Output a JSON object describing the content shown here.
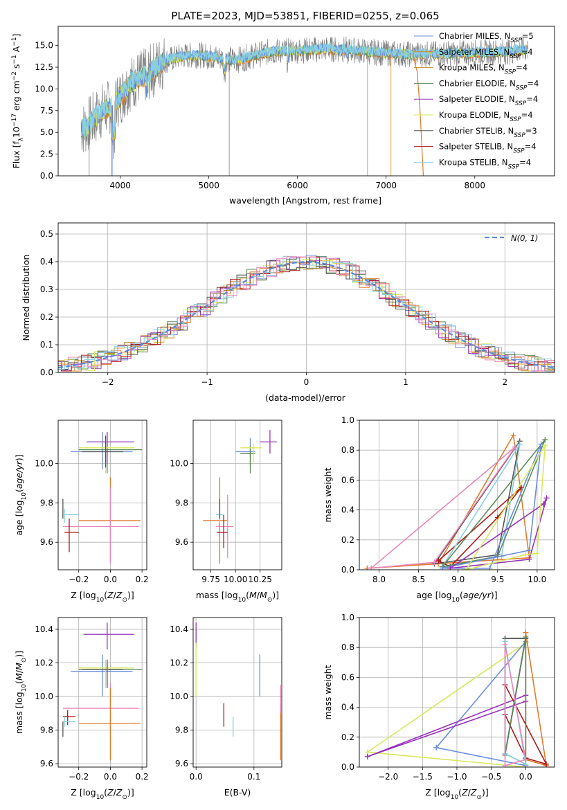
{
  "title": "PLATE=2023, MJD=53851, FIBERID=0255, z=0.065",
  "colors": {
    "Chabrier MILES": "#6b8fde",
    "Salpeter MILES": "#e07b2a",
    "Kroupa MILES": "#ca8a26",
    "Chabrier ELODIE": "#5b8a5b",
    "Salpeter ELODIE": "#9933bb",
    "Kroupa ELODIE": "#d8e85a",
    "Chabrier STELIB": "#555555",
    "Salpeter STELIB": "#b01818",
    "Kroupa STELIB": "#88d0e0",
    "Pink": "#e887b8",
    "Data": "#808080"
  },
  "chart_data": [
    {
      "type": "line",
      "panel": "spectrum",
      "xlabel": "wavelength [Angstrom, rest frame]",
      "ylabel_pre": "Flux [f",
      "ylabel_sub": "λ",
      "ylabel_mid": "10",
      "ylabel_sup": "−17",
      "ylabel_post": " erg cm",
      "ylabel_sup2": "−2",
      "ylabel_post2": " s",
      "ylabel_sup3": "−1",
      "ylabel_post3": " A",
      "ylabel_sup4": "−1",
      "ylabel_end": "]",
      "xlim": [
        3300,
        8900
      ],
      "ylim": [
        0,
        17.2
      ],
      "xticks": [
        "4000",
        "5000",
        "6000",
        "7000",
        "8000"
      ],
      "yticks": [
        "0.0",
        "2.5",
        "5.0",
        "7.5",
        "10.0",
        "12.5",
        "15.0"
      ],
      "legend": [
        {
          "name": "Chabrier MILES",
          "n": "5"
        },
        {
          "name": "Salpeter MILES",
          "n": "4"
        },
        {
          "name": "Kroupa MILES",
          "n": "4"
        },
        {
          "name": "Chabrier ELODIE",
          "n": "4"
        },
        {
          "name": "Salpeter ELODIE",
          "n": "4"
        },
        {
          "name": "Kroupa ELODIE",
          "n": "4"
        },
        {
          "name": "Chabrier STELIB",
          "n": "3"
        },
        {
          "name": "Salpeter STELIB",
          "n": "4"
        },
        {
          "name": "Kroupa STELIB",
          "n": "4"
        }
      ],
      "nssp_label": "N",
      "nssp_sub": "SSP",
      "continuum": {
        "x": [
          3600,
          3700,
          3800,
          3900,
          4000,
          4100,
          4200,
          4300,
          4400,
          4500,
          4700,
          4900,
          5100,
          5300,
          5500,
          5700,
          6000,
          6300,
          6600,
          6900,
          7200,
          7500,
          7800,
          8100,
          8400,
          8600
        ],
        "y": [
          5.5,
          6.5,
          7.5,
          8.0,
          9.0,
          10.5,
          11.2,
          11.5,
          12.5,
          13.2,
          13.8,
          13.9,
          13.6,
          13.3,
          13.8,
          14.3,
          14.4,
          14.6,
          14.5,
          14.2,
          14.0,
          14.0,
          14.1,
          14.2,
          14.3,
          14.6
        ]
      }
    },
    {
      "type": "histogram",
      "panel": "residuals",
      "xlabel": "(data-model)/error",
      "ylabel": "Normed distribution",
      "xlim": [
        -2.5,
        2.5
      ],
      "ylim": [
        0,
        0.54
      ],
      "xticks": [
        "−2",
        "−1",
        "0",
        "1",
        "2"
      ],
      "yticks": [
        "0.0",
        "0.1",
        "0.2",
        "0.3",
        "0.4",
        "0.5"
      ],
      "legend_label": "N(0, 1)"
    },
    {
      "type": "scatter",
      "panel": "age_vs_Z",
      "xlabel_pre": "Z [log",
      "xlabel_sub": "10",
      "xlabel_post": "(Z/Z",
      "xlabel_sun": "⊙",
      "xlabel_end": ")]",
      "ylabel_pre": "age  [log",
      "ylabel_sub": "10",
      "ylabel_post": "(age/yr)]",
      "xlim": [
        -0.33,
        0.23
      ],
      "ylim": [
        9.46,
        10.22
      ],
      "xticks": [
        "−0.2",
        "0.0",
        "0.2"
      ],
      "yticks": [
        "9.6",
        "9.8",
        "10.0"
      ],
      "points": [
        {
          "c": "Chabrier MILES",
          "x": -0.05,
          "y": 10.06,
          "ex": [
            -0.25,
            0.14
          ],
          "ey": [
            9.97,
            10.16
          ]
        },
        {
          "c": "Chabrier ELODIE",
          "x": -0.02,
          "y": 10.07,
          "ex": [
            -0.2,
            0.2
          ],
          "ey": [
            9.95,
            10.15
          ]
        },
        {
          "c": "Salpeter ELODIE",
          "x": -0.02,
          "y": 10.11,
          "ex": [
            -0.15,
            0.15
          ],
          "ey": [
            10.0,
            10.16
          ]
        },
        {
          "c": "Kroupa ELODIE",
          "x": -0.03,
          "y": 10.08,
          "ex": [
            -0.2,
            0.15
          ],
          "ey": [
            9.95,
            10.15
          ]
        },
        {
          "c": "Chabrier STELIB",
          "x": -0.03,
          "y": 10.06,
          "ex": [
            -0.18,
            0.08
          ],
          "ey": [
            9.98,
            10.14
          ]
        },
        {
          "c": "Salpeter MILES",
          "x": 0.0,
          "y": 9.71,
          "ex": [
            -0.2,
            0.19
          ],
          "ey": [
            9.5,
            9.93
          ]
        },
        {
          "c": "Pink",
          "x": 0.0,
          "y": 9.68,
          "ex": [
            -0.3,
            0.18
          ],
          "ey": [
            9.49,
            9.88
          ]
        },
        {
          "c": "Kroupa STELIB",
          "x": -0.29,
          "y": 9.74,
          "ex": [
            -0.29,
            -0.2
          ],
          "ey": [
            9.7,
            9.77
          ]
        },
        {
          "c": "Salpeter STELIB",
          "x": -0.26,
          "y": 9.65,
          "ex": [
            -0.29,
            -0.2
          ],
          "ey": [
            9.55,
            9.72
          ]
        },
        {
          "c": "Chabrier STELIB",
          "x": -0.3,
          "y": 9.78,
          "ex": [
            -0.3,
            -0.3
          ],
          "ey": [
            9.72,
            9.82
          ]
        }
      ]
    },
    {
      "type": "scatter",
      "panel": "age_vs_mass",
      "xlabel_pre": "mass [log",
      "xlabel_sub": "10",
      "xlabel_post": "(M/M",
      "xlabel_sun": "⊙",
      "xlabel_end": ")]",
      "xlim": [
        9.57,
        10.47
      ],
      "ylim": [
        9.46,
        10.22
      ],
      "xticks": [
        "9.75",
        "10.00",
        "10.25"
      ],
      "yticks": [
        "9.6",
        "9.8",
        "10.0"
      ],
      "points": [
        {
          "c": "Chabrier MILES",
          "x": 10.15,
          "y": 10.06,
          "ex": [
            10.0,
            10.2
          ],
          "ey": [
            9.99,
            10.13
          ]
        },
        {
          "c": "Chabrier ELODIE",
          "x": 10.15,
          "y": 10.05,
          "ex": [
            10.05,
            10.2
          ],
          "ey": [
            9.95,
            10.09
          ]
        },
        {
          "c": "Kroupa ELODIE",
          "x": 10.18,
          "y": 10.08,
          "ex": [
            10.05,
            10.27
          ],
          "ey": [
            10.0,
            10.1
          ]
        },
        {
          "c": "Salpeter ELODIE",
          "x": 10.35,
          "y": 10.11,
          "ex": [
            10.25,
            10.42
          ],
          "ey": [
            10.05,
            10.17
          ]
        },
        {
          "c": "Salpeter MILES",
          "x": 9.84,
          "y": 9.71,
          "ex": [
            9.67,
            9.92
          ],
          "ey": [
            9.49,
            9.93
          ]
        },
        {
          "c": "Pink",
          "x": 9.92,
          "y": 9.68,
          "ex": [
            9.8,
            9.98
          ],
          "ey": [
            9.52,
            9.84
          ]
        },
        {
          "c": "Salpeter STELIB",
          "x": 9.88,
          "y": 9.65,
          "ex": [
            9.81,
            9.92
          ],
          "ey": [
            9.57,
            9.74
          ]
        },
        {
          "c": "Kroupa STELIB",
          "x": 9.84,
          "y": 9.74,
          "ex": [
            9.8,
            9.87
          ],
          "ey": [
            9.7,
            9.77
          ]
        },
        {
          "c": "Chabrier STELIB",
          "x": 9.84,
          "y": 9.77,
          "ex": [
            9.84,
            9.84
          ],
          "ey": [
            9.72,
            9.82
          ]
        }
      ]
    },
    {
      "type": "line",
      "panel": "weight_vs_age",
      "xlabel_pre": "age  [log",
      "xlabel_sub": "10",
      "xlabel_post": "(age/yr)]",
      "ylabel": "mass weight",
      "xlim": [
        7.75,
        10.22
      ],
      "ylim": [
        0,
        1.0
      ],
      "xticks": [
        "8.0",
        "8.5",
        "9.0",
        "9.5",
        "10.0"
      ],
      "yticks": [
        "0.0",
        "0.2",
        "0.4",
        "0.6",
        "0.8",
        "1.0"
      ],
      "series": [
        {
          "c": "Salpeter MILES",
          "x": [
            7.85,
            8.75,
            9.7,
            9.9,
            7.85
          ],
          "y": [
            0.01,
            0.04,
            0.9,
            0.08,
            0.01
          ]
        },
        {
          "c": "Chabrier STELIB",
          "x": [
            8.7,
            9.5,
            9.78,
            8.7
          ],
          "y": [
            0.04,
            0.1,
            0.86,
            0.04
          ]
        },
        {
          "c": "Salpeter STELIB",
          "x": [
            8.75,
            8.9,
            9.5,
            9.8,
            8.75
          ],
          "y": [
            0.06,
            0.02,
            0.35,
            0.55,
            0.06
          ]
        },
        {
          "c": "Pink",
          "x": [
            7.9,
            8.7,
            9.72,
            9.72,
            7.9
          ],
          "y": [
            0.01,
            0.05,
            0.82,
            0.82,
            0.01
          ]
        },
        {
          "c": "Kroupa STELIB",
          "x": [
            8.8,
            9.55,
            9.78,
            8.8
          ],
          "y": [
            0.02,
            0.09,
            0.84,
            0.02
          ]
        },
        {
          "c": "Chabrier ELODIE",
          "x": [
            8.8,
            9.5,
            10.1,
            8.8
          ],
          "y": [
            0.02,
            0.09,
            0.87,
            0.02
          ]
        },
        {
          "c": "Chabrier MILES",
          "x": [
            8.8,
            9.9,
            10.05,
            9.4,
            8.8
          ],
          "y": [
            0.01,
            0.13,
            0.84,
            0.01,
            0.01
          ]
        },
        {
          "c": "Salpeter ELODIE",
          "x": [
            8.9,
            9.9,
            10.12,
            10.08,
            8.9
          ],
          "y": [
            0.01,
            0.07,
            0.48,
            0.44,
            0.01
          ]
        },
        {
          "c": "Kroupa ELODIE",
          "x": [
            9.1,
            9.85,
            10.0,
            10.1,
            9.1
          ],
          "y": [
            0.0,
            0.1,
            0.11,
            0.83,
            0.0
          ]
        }
      ]
    },
    {
      "type": "scatter",
      "panel": "mass_vs_Z",
      "xlabel_pre": "Z [log",
      "xlabel_sub": "10",
      "xlabel_post": "(Z/Z",
      "xlabel_sun": "⊙",
      "xlabel_end": ")]",
      "ylabel_pre": "mass [log",
      "ylabel_sub": "10",
      "ylabel_post": "(M/M",
      "ylabel_sun": "⊙",
      "ylabel_end": ")]",
      "xlim": [
        -0.33,
        0.23
      ],
      "ylim": [
        9.58,
        10.47
      ],
      "xticks": [
        "−0.2",
        "0.0",
        "0.2"
      ],
      "yticks": [
        "9.6",
        "9.8",
        "10.0",
        "10.2",
        "10.4"
      ],
      "points": [
        {
          "c": "Salpeter ELODIE",
          "x": -0.02,
          "y": 10.37,
          "ex": [
            -0.17,
            0.15
          ],
          "ey": [
            10.28,
            10.44
          ]
        },
        {
          "c": "Chabrier MILES",
          "x": -0.05,
          "y": 10.15,
          "ex": [
            -0.25,
            0.14
          ],
          "ey": [
            10.0,
            10.25
          ]
        },
        {
          "c": "Chabrier ELODIE",
          "x": -0.02,
          "y": 10.16,
          "ex": [
            -0.2,
            0.2
          ],
          "ey": [
            10.07,
            10.2
          ]
        },
        {
          "c": "Kroupa ELODIE",
          "x": -0.03,
          "y": 10.17,
          "ex": [
            -0.2,
            0.15
          ],
          "ey": [
            10.05,
            10.22
          ]
        },
        {
          "c": "Chabrier STELIB",
          "x": -0.02,
          "y": 10.16,
          "ex": [
            -0.18,
            0.08
          ],
          "ey": [
            10.05,
            10.22
          ]
        },
        {
          "c": "Pink",
          "x": 0.0,
          "y": 9.93,
          "ex": [
            -0.3,
            0.18
          ],
          "ey": [
            9.78,
            10.08
          ]
        },
        {
          "c": "Salpeter MILES",
          "x": 0.0,
          "y": 9.84,
          "ex": [
            -0.2,
            0.19
          ],
          "ey": [
            9.62,
            10.05
          ]
        },
        {
          "c": "Salpeter STELIB",
          "x": -0.27,
          "y": 9.88,
          "ex": [
            -0.3,
            -0.22
          ],
          "ey": [
            9.83,
            9.92
          ]
        },
        {
          "c": "Kroupa STELIB",
          "x": -0.29,
          "y": 9.85,
          "ex": [
            -0.3,
            -0.22
          ],
          "ey": [
            9.82,
            9.88
          ]
        },
        {
          "c": "Chabrier STELIB",
          "x": -0.3,
          "y": 9.8,
          "ex": [
            -0.3,
            -0.3
          ],
          "ey": [
            9.76,
            9.85
          ]
        }
      ]
    },
    {
      "type": "scatter",
      "panel": "mass_vs_EBV",
      "xlabel": "E(B-V)",
      "xlim": [
        -0.005,
        0.148
      ],
      "ylim": [
        9.58,
        10.47
      ],
      "xticks": [
        "0.0",
        "0.1"
      ],
      "yticks": [
        "9.6",
        "9.8",
        "10.0",
        "10.2",
        "10.4"
      ],
      "points": [
        {
          "c": "Salpeter ELODIE",
          "x": 0.0,
          "y": 10.37,
          "ex": [
            0.0,
            0.0
          ],
          "ey": [
            10.29,
            10.44
          ]
        },
        {
          "c": "Kroupa ELODIE",
          "x": 0.0,
          "y": 10.17,
          "ex": [
            0.0,
            0.0
          ],
          "ey": [
            10.0,
            10.32
          ]
        },
        {
          "c": "Chabrier MILES",
          "x": 0.11,
          "y": 10.13,
          "ex": [
            0.11,
            0.11
          ],
          "ey": [
            10.0,
            10.25
          ]
        },
        {
          "c": "Salpeter STELIB",
          "x": 0.048,
          "y": 9.88,
          "ex": [
            0.048,
            0.048
          ],
          "ey": [
            9.82,
            9.96
          ]
        },
        {
          "c": "Kroupa STELIB",
          "x": 0.064,
          "y": 9.82,
          "ex": [
            0.064,
            0.064
          ],
          "ey": [
            9.76,
            9.88
          ]
        },
        {
          "c": "Salpeter MILES",
          "x": 0.146,
          "y": 9.8,
          "ex": [
            0.146,
            0.146
          ],
          "ey": [
            9.62,
            9.95
          ]
        },
        {
          "c": "Pink",
          "x": 0.146,
          "y": 9.95,
          "ex": [
            0.146,
            0.146
          ],
          "ey": [
            9.9,
            10.07
          ]
        }
      ]
    },
    {
      "type": "line",
      "panel": "weight_vs_Z",
      "xlabel_pre": "Z [log",
      "xlabel_sub": "10",
      "xlabel_post": "(Z/Z",
      "xlabel_sun": "⊙",
      "xlabel_end": ")]",
      "ylabel": "mass weight",
      "xlim": [
        -2.42,
        0.42
      ],
      "ylim": [
        0,
        1.0
      ],
      "xticks": [
        "−2.0",
        "−1.5",
        "−1.0",
        "−0.5",
        "0.0"
      ],
      "yticks": [
        "0.0",
        "0.2",
        "0.4",
        "0.6",
        "0.8",
        "1.0"
      ],
      "series": [
        {
          "c": "Kroupa ELODIE",
          "x": [
            -2.3,
            0.0,
            0.0,
            -2.3
          ],
          "y": [
            0.1,
            0.83,
            0.0,
            0.1
          ]
        },
        {
          "c": "Chabrier MILES",
          "x": [
            -1.3,
            0.0,
            0.0,
            -1.3
          ],
          "y": [
            0.13,
            0.84,
            0.01,
            0.13
          ]
        },
        {
          "c": "Salpeter ELODIE",
          "x": [
            -2.3,
            0.0,
            0.0,
            -2.3
          ],
          "y": [
            0.07,
            0.44,
            0.48,
            0.07
          ]
        },
        {
          "c": "Salpeter MILES",
          "x": [
            0.0,
            0.0,
            0.3,
            0.0
          ],
          "y": [
            0.9,
            0.05,
            0.01,
            0.9
          ]
        },
        {
          "c": "Salpeter STELIB",
          "x": [
            -0.3,
            -0.3,
            0.0,
            0.3,
            -0.3
          ],
          "y": [
            0.55,
            0.35,
            0.06,
            0.02,
            0.55
          ]
        },
        {
          "c": "Chabrier STELIB",
          "x": [
            -0.3,
            -0.3,
            0.0,
            -0.3
          ],
          "y": [
            0.86,
            0.08,
            0.86,
            0.86
          ]
        },
        {
          "c": "Chabrier ELODIE",
          "x": [
            -0.3,
            0.0,
            0.0,
            -0.3
          ],
          "y": [
            0.09,
            0.87,
            0.02,
            0.09
          ]
        },
        {
          "c": "Kroupa STELIB",
          "x": [
            -0.3,
            -0.3,
            0.0,
            -0.3
          ],
          "y": [
            0.84,
            0.09,
            0.02,
            0.84
          ]
        },
        {
          "c": "Pink",
          "x": [
            -0.3,
            -0.3,
            0.0,
            -0.3
          ],
          "y": [
            0.82,
            0.01,
            0.05,
            0.82
          ]
        }
      ]
    }
  ]
}
